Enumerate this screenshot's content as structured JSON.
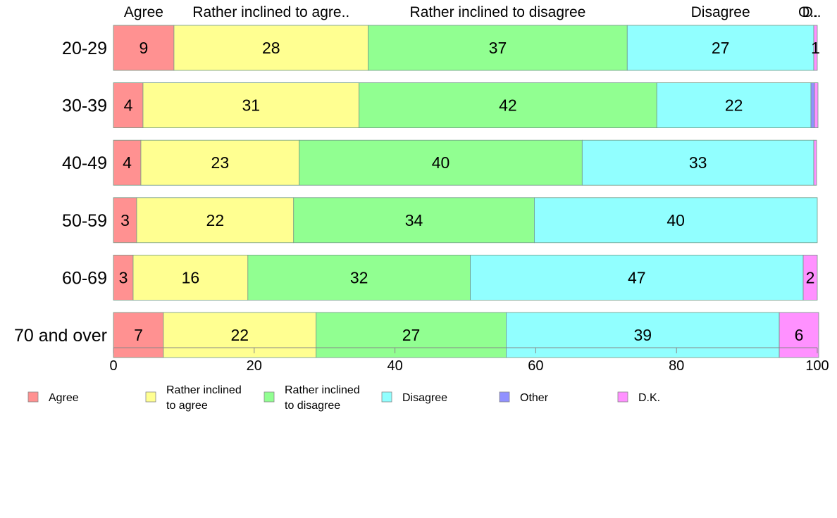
{
  "chart_data": {
    "type": "bar",
    "orientation": "horizontal",
    "stacked": true,
    "xlim": [
      0,
      100
    ],
    "x_ticks": [
      0,
      20,
      40,
      60,
      80,
      100
    ],
    "grid": false,
    "legend_position": "bottom",
    "categories": [
      "20-29",
      "30-39",
      "40-49",
      "50-59",
      "60-69",
      "70 and over"
    ],
    "series": [
      {
        "name": "Agree",
        "color": "#ff9191",
        "values": [
          8.6,
          4.2,
          3.9,
          3.3,
          2.8,
          7.1
        ]
      },
      {
        "name": "Rather inclined to agree",
        "color": "#ffff91",
        "values": [
          27.6,
          30.7,
          22.5,
          22.3,
          16.3,
          21.7
        ]
      },
      {
        "name": "Rather inclined to disagree",
        "color": "#91ff91",
        "values": [
          36.8,
          42.3,
          40.2,
          34.2,
          31.6,
          27.0
        ]
      },
      {
        "name": "Disagree",
        "color": "#91ffff",
        "values": [
          26.5,
          21.9,
          32.9,
          40.2,
          47.3,
          38.8
        ]
      },
      {
        "name": "Other",
        "color": "#9191ff",
        "values": [
          0.0,
          0.5,
          0.0,
          0.0,
          0.0,
          0.0
        ]
      },
      {
        "name": "D.K.",
        "color": "#ff91ff",
        "values": [
          0.5,
          0.5,
          0.4,
          0.0,
          2.0,
          5.6
        ]
      }
    ],
    "data_labels": [
      [
        "9",
        "28",
        "37",
        "27",
        "",
        "1"
      ],
      [
        "4",
        "31",
        "42",
        "22",
        "",
        ""
      ],
      [
        "4",
        "23",
        "40",
        "33",
        "",
        ""
      ],
      [
        "3",
        "22",
        "34",
        "40",
        "",
        ""
      ],
      [
        "3",
        "16",
        "32",
        "47",
        "",
        "2"
      ],
      [
        "7",
        "22",
        "27",
        "39",
        "",
        "6"
      ]
    ],
    "top_labels": [
      "Agree",
      "Rather inclined to agre..",
      "Rather inclined to disagree",
      "Disagree",
      "O..",
      "D.."
    ],
    "legend": [
      {
        "lines": [
          "Agree"
        ],
        "color": "#ff9191"
      },
      {
        "lines": [
          "Rather inclined",
          "to agree"
        ],
        "color": "#ffff91"
      },
      {
        "lines": [
          "Rather inclined",
          "to disagree"
        ],
        "color": "#91ff91"
      },
      {
        "lines": [
          "Disagree"
        ],
        "color": "#91ffff"
      },
      {
        "lines": [
          "Other"
        ],
        "color": "#9191ff"
      },
      {
        "lines": [
          "D.K."
        ],
        "color": "#ff91ff"
      }
    ]
  }
}
